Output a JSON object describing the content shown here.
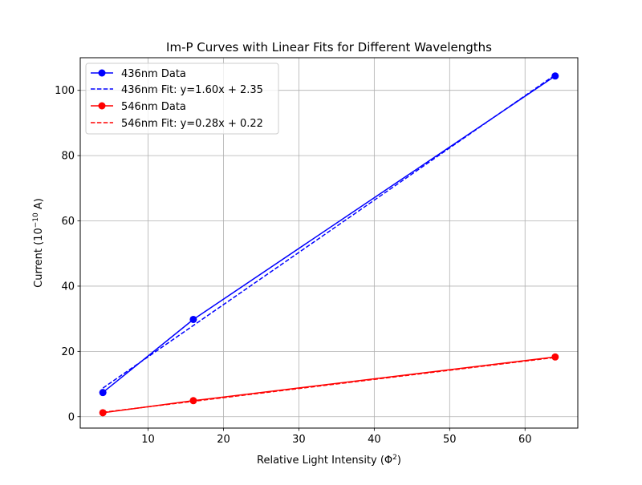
{
  "chart_data": {
    "type": "line",
    "title": "Im-P Curves with Linear Fits for Different Wavelengths",
    "xlabel_main": "Relative Light Intensity (Φ",
    "xlabel_sup": "2",
    "xlabel_end": ")",
    "ylabel_main": "Current (10",
    "ylabel_sup": "−10",
    "ylabel_end": " A)",
    "xlim": [
      1.0,
      67.0
    ],
    "ylim": [
      -3.5,
      110.0
    ],
    "xticks": [
      10,
      20,
      30,
      40,
      50,
      60
    ],
    "yticks": [
      0,
      20,
      40,
      60,
      80,
      100
    ],
    "grid": true,
    "legend_position": "upper left",
    "series": [
      {
        "name": "436nm Data",
        "style": "solid-marker",
        "color": "#0000ff",
        "x": [
          4,
          16,
          64
        ],
        "y": [
          7.4,
          29.8,
          104.4
        ]
      },
      {
        "name": "436nm Fit: y=1.60x + 2.35",
        "style": "dashed",
        "color": "#0000ff",
        "x": [
          4,
          16,
          64
        ],
        "y": [
          8.75,
          27.95,
          104.75
        ]
      },
      {
        "name": "546nm Data",
        "style": "solid-marker",
        "color": "#ff0000",
        "x": [
          4,
          16,
          64
        ],
        "y": [
          1.2,
          4.9,
          18.3
        ]
      },
      {
        "name": "546nm Fit: y=0.28x + 0.22",
        "style": "dashed",
        "color": "#ff0000",
        "x": [
          4,
          16,
          64
        ],
        "y": [
          1.34,
          4.7,
          18.14
        ]
      }
    ]
  }
}
